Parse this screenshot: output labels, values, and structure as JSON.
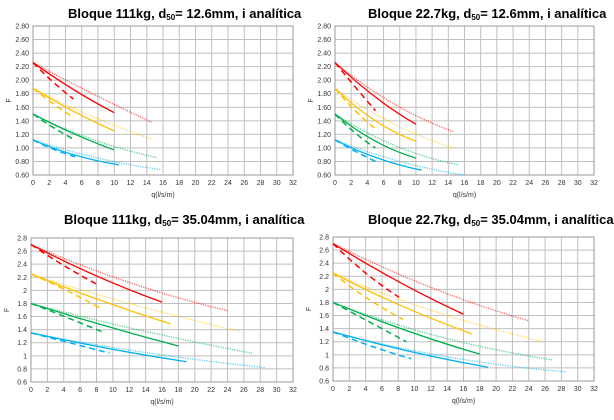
{
  "colors": {
    "red": "#ff0000",
    "yellow": "#ffc000",
    "green": "#00b050",
    "blue": "#00b0f0",
    "grid": "#bfbfbf"
  },
  "chart_data": [
    {
      "type": "line",
      "title_pre": "Bloque 111kg, d",
      "title_sub": "50",
      "title_post": "= 12.6mm, i analítica",
      "xlabel": "q(l/s/m)",
      "ylabel": "F",
      "xlim": [
        0,
        32
      ],
      "ylim": [
        0.6,
        2.8
      ],
      "grid": true,
      "xticks": [
        "0",
        "2",
        "4",
        "6",
        "8",
        "10",
        "12",
        "14",
        "16",
        "18",
        "20",
        "22",
        "24",
        "26",
        "28",
        "30",
        "32"
      ],
      "yticks": [
        "0.60",
        "0.80",
        "1.00",
        "1.20",
        "1.40",
        "1.60",
        "1.80",
        "2.00",
        "2.20",
        "2.40",
        "2.60",
        "2.80"
      ],
      "series": [
        {
          "color": "red",
          "style": "dashed",
          "x": [
            0,
            2.5,
            5
          ],
          "y": [
            2.26,
            1.97,
            1.72
          ]
        },
        {
          "color": "red",
          "style": "solid",
          "x": [
            0,
            5,
            10
          ],
          "y": [
            2.26,
            1.86,
            1.52
          ]
        },
        {
          "color": "red",
          "style": "dotted",
          "x": [
            0,
            7,
            14.6
          ],
          "y": [
            2.26,
            1.82,
            1.38
          ]
        },
        {
          "color": "yellow",
          "style": "dashed",
          "x": [
            0,
            2.5,
            5
          ],
          "y": [
            1.88,
            1.65,
            1.45
          ]
        },
        {
          "color": "yellow",
          "style": "solid",
          "x": [
            0,
            5,
            10
          ],
          "y": [
            1.88,
            1.54,
            1.25
          ]
        },
        {
          "color": "yellow",
          "style": "dotted",
          "x": [
            0,
            7,
            14.6
          ],
          "y": [
            1.88,
            1.48,
            1.13
          ]
        },
        {
          "color": "green",
          "style": "dashed",
          "x": [
            0,
            2.5,
            5
          ],
          "y": [
            1.5,
            1.3,
            1.13
          ]
        },
        {
          "color": "green",
          "style": "solid",
          "x": [
            0,
            5,
            10
          ],
          "y": [
            1.5,
            1.21,
            0.97
          ]
        },
        {
          "color": "green",
          "style": "dotted",
          "x": [
            0,
            7.5,
            15.2
          ],
          "y": [
            1.5,
            1.12,
            0.86
          ]
        },
        {
          "color": "blue",
          "style": "dashed",
          "x": [
            0,
            2.5,
            5.2
          ],
          "y": [
            1.12,
            0.98,
            0.87
          ]
        },
        {
          "color": "blue",
          "style": "solid",
          "x": [
            0,
            5,
            10.6
          ],
          "y": [
            1.12,
            0.9,
            0.75
          ]
        },
        {
          "color": "blue",
          "style": "dotted",
          "x": [
            0,
            8,
            15.8
          ],
          "y": [
            1.12,
            0.85,
            0.68
          ]
        }
      ]
    },
    {
      "type": "line",
      "title_pre": "Bloque 22.7kg, d",
      "title_sub": "50",
      "title_post": "= 12.6mm, i analítica",
      "xlabel": "q(l/s/m)",
      "ylabel": "F",
      "xlim": [
        0,
        32
      ],
      "ylim": [
        0.6,
        2.8
      ],
      "grid": true,
      "xticks": [
        "0",
        "2",
        "4",
        "6",
        "8",
        "10",
        "12",
        "14",
        "16",
        "18",
        "20",
        "22",
        "24",
        "26",
        "28",
        "30",
        "32"
      ],
      "yticks": [
        "0.60",
        "0.80",
        "1.00",
        "1.20",
        "1.40",
        "1.60",
        "1.80",
        "2.00",
        "2.20",
        "2.40",
        "2.60",
        "2.80"
      ],
      "series": [
        {
          "color": "red",
          "style": "dashed",
          "x": [
            0,
            2.5,
            5
          ],
          "y": [
            2.26,
            1.9,
            1.55
          ]
        },
        {
          "color": "red",
          "style": "solid",
          "x": [
            0,
            5,
            10
          ],
          "y": [
            2.26,
            1.75,
            1.35
          ]
        },
        {
          "color": "red",
          "style": "dotted",
          "x": [
            0,
            7,
            14.6
          ],
          "y": [
            2.26,
            1.67,
            1.24
          ]
        },
        {
          "color": "yellow",
          "style": "dashed",
          "x": [
            0,
            2.5,
            5
          ],
          "y": [
            1.88,
            1.55,
            1.28
          ]
        },
        {
          "color": "yellow",
          "style": "solid",
          "x": [
            0,
            5,
            10
          ],
          "y": [
            1.88,
            1.4,
            1.1
          ]
        },
        {
          "color": "yellow",
          "style": "dotted",
          "x": [
            0,
            7,
            14.6
          ],
          "y": [
            1.88,
            1.37,
            1.0
          ]
        },
        {
          "color": "green",
          "style": "dashed",
          "x": [
            0,
            2.5,
            5
          ],
          "y": [
            1.5,
            1.22,
            1.0
          ]
        },
        {
          "color": "green",
          "style": "solid",
          "x": [
            0,
            5,
            10
          ],
          "y": [
            1.5,
            1.1,
            0.85
          ]
        },
        {
          "color": "green",
          "style": "dotted",
          "x": [
            0,
            7.5,
            15.3
          ],
          "y": [
            1.5,
            1.03,
            0.75
          ]
        },
        {
          "color": "blue",
          "style": "dashed",
          "x": [
            0,
            2.5,
            5.4
          ],
          "y": [
            1.12,
            0.95,
            0.78
          ]
        },
        {
          "color": "blue",
          "style": "solid",
          "x": [
            0,
            5,
            10.7
          ],
          "y": [
            1.12,
            0.86,
            0.67
          ]
        },
        {
          "color": "blue",
          "style": "dotted",
          "x": [
            0,
            8,
            16
          ],
          "y": [
            1.12,
            0.8,
            0.6
          ]
        }
      ]
    },
    {
      "type": "line",
      "title_pre": "Bloque 111kg, d",
      "title_sub": "50",
      "title_post": "= 35.04mm, i analítica",
      "xlabel": "q(l/s/m)",
      "ylabel": "F",
      "xlim": [
        0,
        32
      ],
      "ylim": [
        0.6,
        2.8
      ],
      "grid": true,
      "xticks": [
        "0",
        "2",
        "4",
        "6",
        "8",
        "10",
        "12",
        "14",
        "16",
        "18",
        "20",
        "22",
        "24",
        "26",
        "28",
        "30",
        "32"
      ],
      "yticks": [
        "0.6",
        "0.8",
        "1",
        "1.2",
        "1.4",
        "1.6",
        "1.8",
        "2",
        "2.2",
        "2.4",
        "2.6",
        "2.8"
      ],
      "series": [
        {
          "color": "red",
          "style": "dashed",
          "x": [
            0,
            4,
            8.1
          ],
          "y": [
            2.7,
            2.38,
            2.09
          ]
        },
        {
          "color": "red",
          "style": "solid",
          "x": [
            0,
            8,
            16
          ],
          "y": [
            2.7,
            2.22,
            1.82
          ]
        },
        {
          "color": "red",
          "style": "dotted",
          "x": [
            0,
            12,
            24
          ],
          "y": [
            2.7,
            2.12,
            1.69
          ]
        },
        {
          "color": "yellow",
          "style": "dashed",
          "x": [
            0,
            4,
            8.6
          ],
          "y": [
            2.25,
            2.02,
            1.72
          ]
        },
        {
          "color": "yellow",
          "style": "solid",
          "x": [
            0,
            8,
            17
          ],
          "y": [
            2.25,
            1.87,
            1.49
          ]
        },
        {
          "color": "yellow",
          "style": "dotted",
          "x": [
            0,
            12,
            25.6
          ],
          "y": [
            2.25,
            1.8,
            1.37
          ]
        },
        {
          "color": "green",
          "style": "dashed",
          "x": [
            0,
            4.5,
            9
          ],
          "y": [
            1.8,
            1.58,
            1.35
          ]
        },
        {
          "color": "green",
          "style": "solid",
          "x": [
            0,
            9,
            18
          ],
          "y": [
            1.8,
            1.46,
            1.15
          ]
        },
        {
          "color": "green",
          "style": "dotted",
          "x": [
            0,
            13,
            27
          ],
          "y": [
            1.8,
            1.4,
            1.04
          ]
        },
        {
          "color": "blue",
          "style": "dashed",
          "x": [
            0,
            5,
            9.6
          ],
          "y": [
            1.35,
            1.19,
            1.04
          ]
        },
        {
          "color": "blue",
          "style": "solid",
          "x": [
            0,
            9.5,
            19
          ],
          "y": [
            1.35,
            1.11,
            0.91
          ]
        },
        {
          "color": "blue",
          "style": "dotted",
          "x": [
            0,
            14,
            28.6
          ],
          "y": [
            1.35,
            1.05,
            0.82
          ]
        }
      ]
    },
    {
      "type": "line",
      "title_pre": "Bloque 22.7kg, d",
      "title_sub": "50",
      "title_post": "= 35.04mm, i analítica",
      "xlabel": "q(l/s/m)",
      "ylabel": "F",
      "xlim": [
        0,
        32
      ],
      "ylim": [
        0.6,
        2.8
      ],
      "grid": true,
      "xticks": [
        "0",
        "2",
        "4",
        "6",
        "8",
        "10",
        "12",
        "14",
        "16",
        "18",
        "20",
        "22",
        "24",
        "26",
        "28",
        "30",
        "32"
      ],
      "yticks": [
        "0.6",
        "0.8",
        "1",
        "1.2",
        "1.4",
        "1.6",
        "1.8",
        "2",
        "2.2",
        "2.4",
        "2.6",
        "2.8"
      ],
      "series": [
        {
          "color": "red",
          "style": "dashed",
          "x": [
            0,
            4,
            8.1
          ],
          "y": [
            2.7,
            2.25,
            1.88
          ]
        },
        {
          "color": "red",
          "style": "solid",
          "x": [
            0,
            8,
            16
          ],
          "y": [
            2.7,
            2.12,
            1.62
          ]
        },
        {
          "color": "red",
          "style": "dotted",
          "x": [
            0,
            12,
            24
          ],
          "y": [
            2.7,
            2.03,
            1.52
          ]
        },
        {
          "color": "yellow",
          "style": "dashed",
          "x": [
            0,
            4,
            8.6
          ],
          "y": [
            2.25,
            1.88,
            1.54
          ]
        },
        {
          "color": "yellow",
          "style": "solid",
          "x": [
            0,
            8,
            17
          ],
          "y": [
            2.25,
            1.77,
            1.32
          ]
        },
        {
          "color": "yellow",
          "style": "dotted",
          "x": [
            0,
            12,
            25.6
          ],
          "y": [
            2.25,
            1.68,
            1.21
          ]
        },
        {
          "color": "green",
          "style": "dashed",
          "x": [
            0,
            4.5,
            9
          ],
          "y": [
            1.8,
            1.5,
            1.2
          ]
        },
        {
          "color": "green",
          "style": "solid",
          "x": [
            0,
            9,
            18
          ],
          "y": [
            1.8,
            1.37,
            1.01
          ]
        },
        {
          "color": "green",
          "style": "dotted",
          "x": [
            0,
            13,
            27
          ],
          "y": [
            1.8,
            1.28,
            0.92
          ]
        },
        {
          "color": "blue",
          "style": "dashed",
          "x": [
            0,
            5,
            9.6
          ],
          "y": [
            1.35,
            1.12,
            0.94
          ]
        },
        {
          "color": "blue",
          "style": "solid",
          "x": [
            0,
            9.5,
            19
          ],
          "y": [
            1.35,
            1.05,
            0.81
          ]
        },
        {
          "color": "blue",
          "style": "dotted",
          "x": [
            0,
            14,
            28.6
          ],
          "y": [
            1.35,
            0.97,
            0.74
          ]
        }
      ]
    }
  ]
}
